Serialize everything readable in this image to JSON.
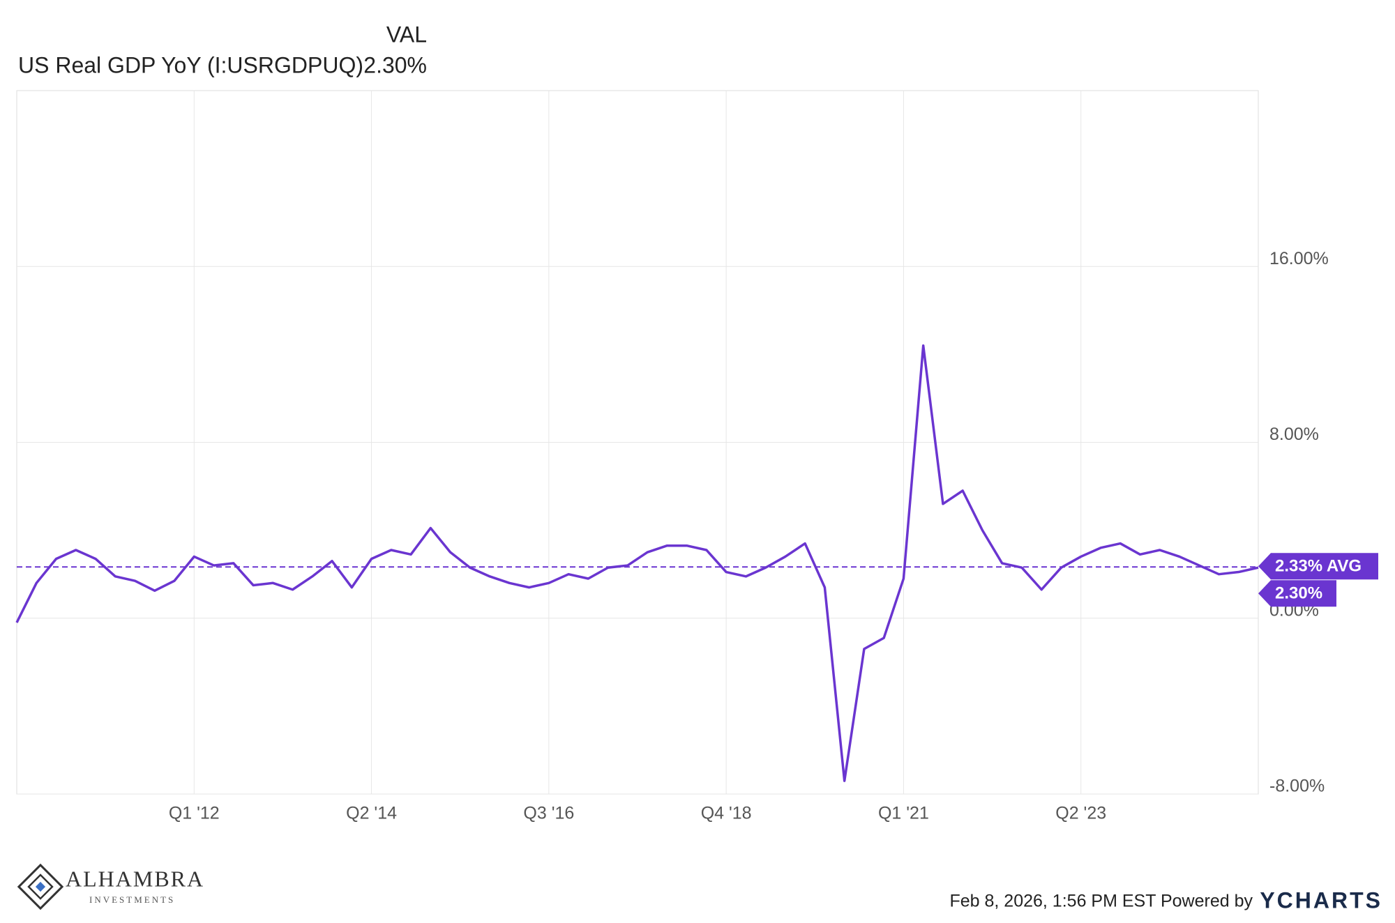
{
  "chart_data": {
    "type": "line",
    "header": {
      "column": "VAL",
      "series_name": "US Real GDP YoY (I:USRGDPUQ)",
      "value": "2.30%"
    },
    "categories": [
      null,
      null,
      null,
      null,
      null,
      null,
      null,
      null,
      null,
      "Q1 '12",
      null,
      null,
      null,
      null,
      null,
      null,
      null,
      null,
      "Q2 '14",
      null,
      null,
      null,
      null,
      null,
      null,
      null,
      null,
      "Q3 '16",
      null,
      null,
      null,
      null,
      null,
      null,
      null,
      null,
      "Q4 '18",
      null,
      null,
      null,
      null,
      null,
      null,
      null,
      null,
      "Q1 '21",
      null,
      null,
      null,
      null,
      null,
      null,
      null,
      null,
      "Q2 '23",
      null,
      null,
      null,
      null,
      null,
      null,
      null,
      null,
      null
    ],
    "series": [
      {
        "name": "US Real GDP YoY (I:USRGDPUQ)",
        "color": "#6a35d0",
        "values": [
          -0.2,
          1.6,
          2.7,
          3.1,
          2.7,
          1.9,
          1.7,
          1.25,
          1.7,
          2.8,
          2.4,
          2.5,
          1.5,
          1.6,
          1.3,
          1.9,
          2.6,
          1.4,
          2.7,
          3.1,
          2.9,
          4.1,
          3.0,
          2.3,
          1.9,
          1.6,
          1.4,
          1.6,
          2.0,
          1.8,
          2.3,
          2.4,
          3.0,
          3.3,
          3.3,
          3.1,
          2.1,
          1.9,
          2.3,
          2.8,
          3.4,
          1.4,
          -7.4,
          -1.4,
          -0.9,
          1.8,
          12.4,
          5.2,
          5.8,
          4.0,
          2.5,
          2.3,
          1.3,
          2.3,
          2.8,
          3.2,
          3.4,
          2.9,
          3.1,
          2.8,
          2.4,
          2.0,
          2.1,
          2.3
        ]
      }
    ],
    "average": {
      "value": 2.33,
      "label": "2.33% AVG"
    },
    "ylim": [
      -8,
      24
    ],
    "yticks": [
      {
        "value": -8,
        "label": "-8.00%"
      },
      {
        "value": 0,
        "label": "0.00%"
      },
      {
        "value": 8,
        "label": "8.00%"
      },
      {
        "value": 16,
        "label": "16.00%"
      }
    ],
    "grid": true,
    "footer": {
      "timestamp": "Feb 8, 2026, 1:56 PM EST Powered by",
      "brand": "YCHARTS",
      "logo_name": "ALHAMBRA",
      "logo_sub": "INVESTMENTS"
    }
  }
}
